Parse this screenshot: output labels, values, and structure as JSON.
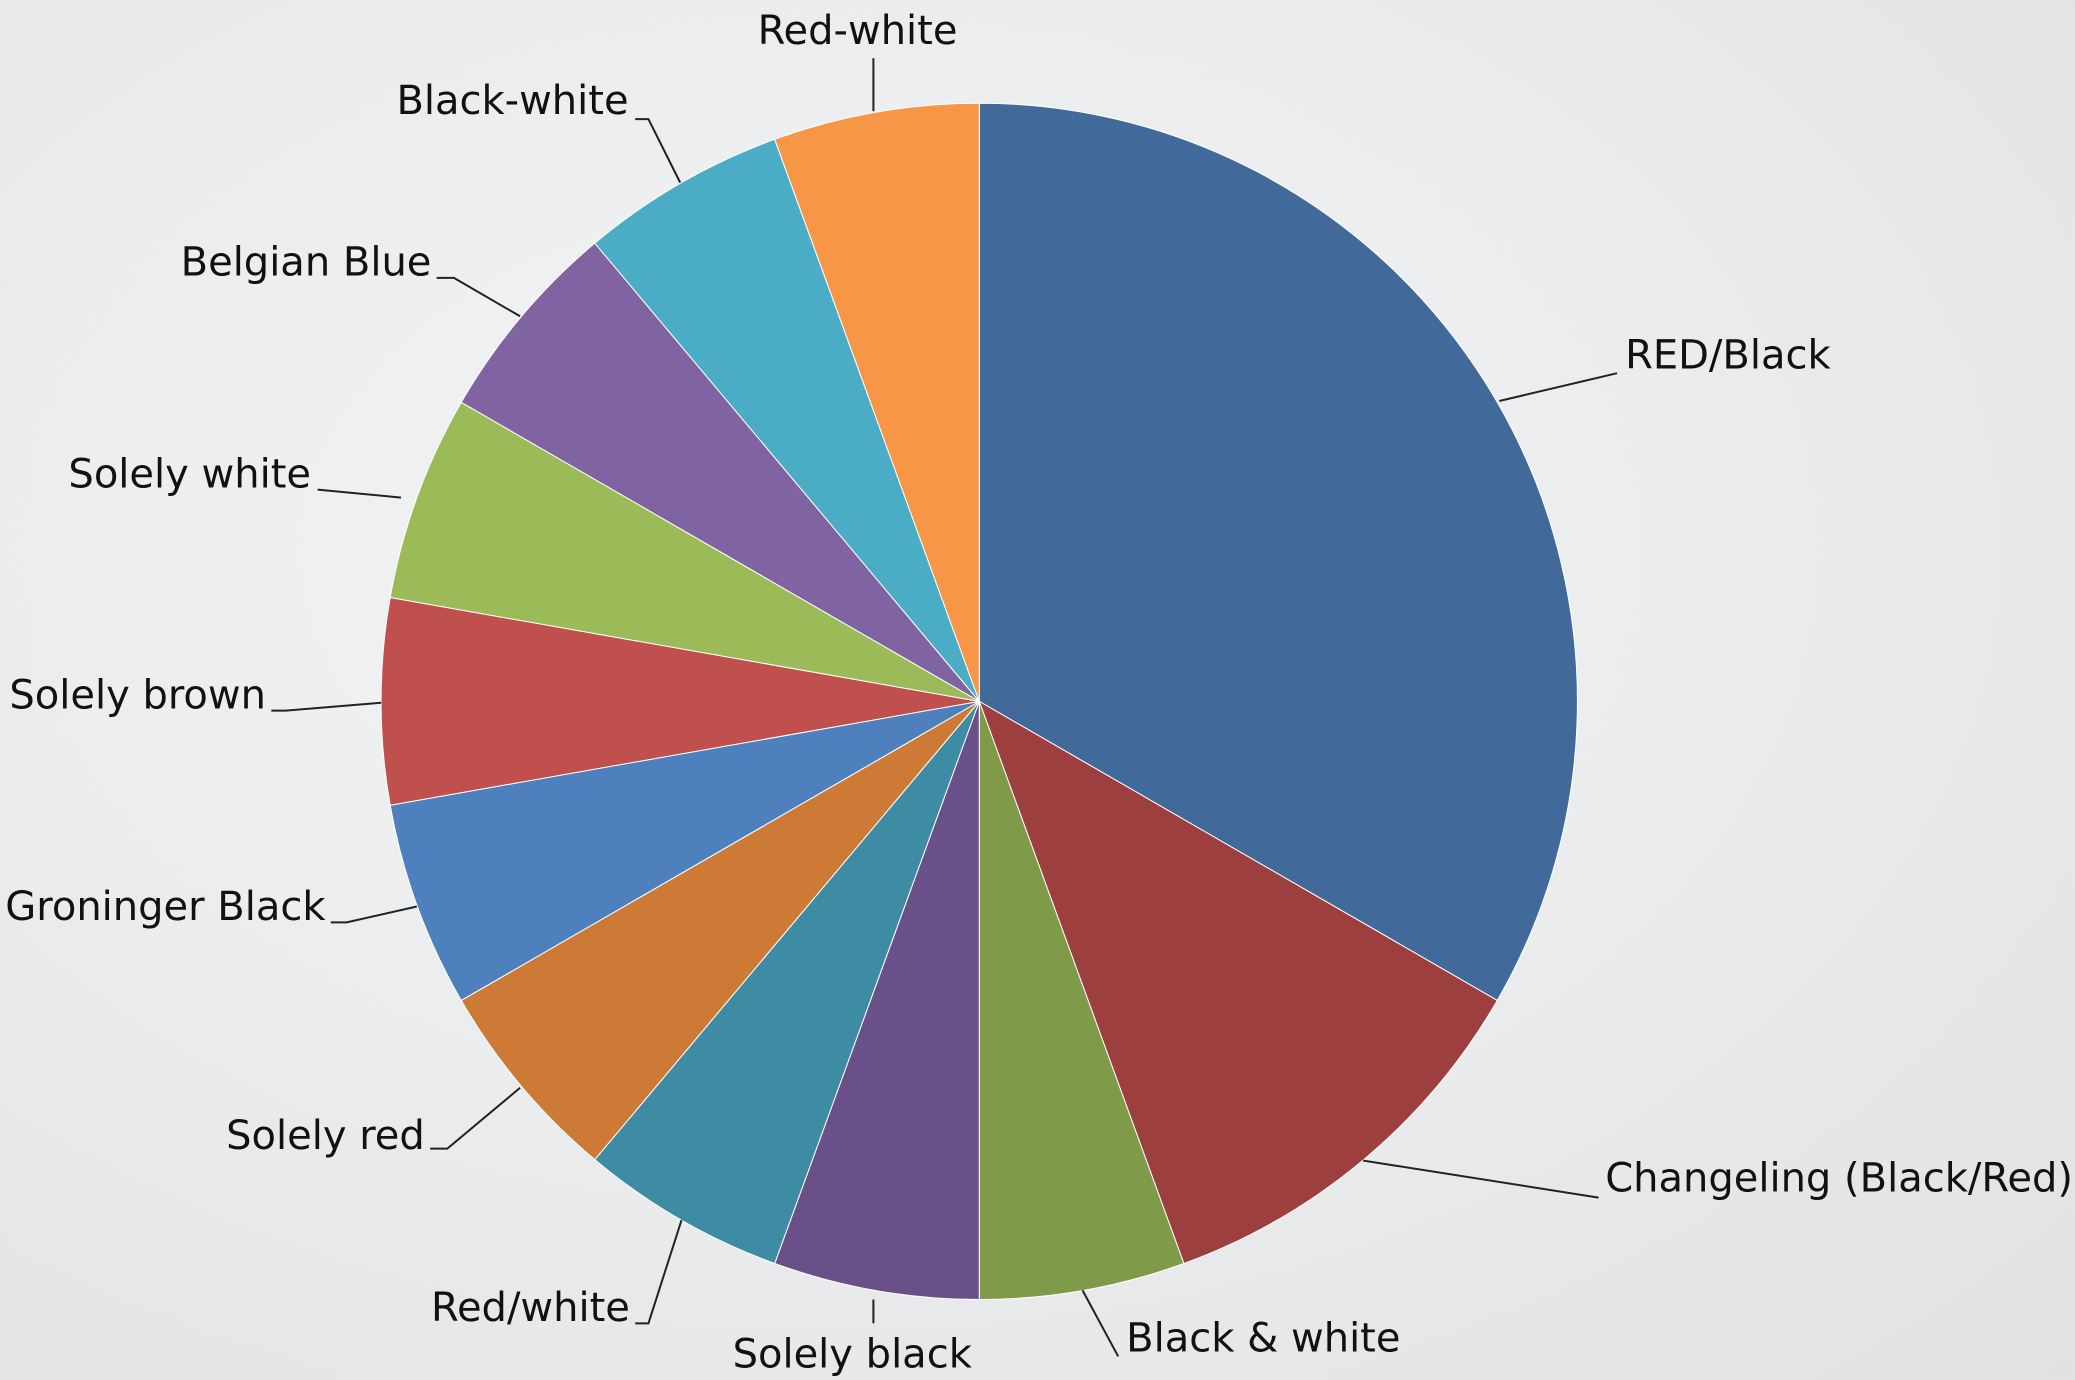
{
  "chart_data": {
    "type": "pie",
    "categories": [
      "RED/Black",
      "Changeling (Black/Red)",
      "Black & white",
      "Solely black",
      "Red/white",
      "Solely red",
      "Groninger Black",
      "Solely brown",
      "Solely white",
      "Belgian Blue",
      "Black-white",
      "Red-white"
    ],
    "values": [
      6,
      2,
      1,
      1,
      1,
      1,
      1,
      1,
      1,
      1,
      1,
      1
    ],
    "colors": [
      "#416a9b",
      "#9e3f3f",
      "#7f9a48",
      "#6a5089",
      "#3d8ca3",
      "#cc7a36",
      "#4d80bd",
      "#c0504d",
      "#9bbb59",
      "#8064a2",
      "#4bacc6",
      "#f79646"
    ]
  }
}
